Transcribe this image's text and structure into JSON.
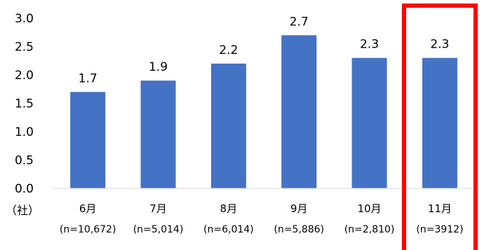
{
  "chart_data": {
    "type": "bar",
    "categories": [
      "6月",
      "7月",
      "8月",
      "9月",
      "10月",
      "11月"
    ],
    "sample_sizes": [
      "(n=10,672)",
      "(n=5,014)",
      "(n=6,014)",
      "(n=5,886)",
      "(n=2,810)",
      "(n=3912)"
    ],
    "values": [
      1.7,
      1.9,
      2.2,
      2.7,
      2.3,
      2.3
    ],
    "value_labels": [
      "1.7",
      "1.9",
      "2.2",
      "2.7",
      "2.3",
      "2.3"
    ],
    "yticks": [
      "0.0",
      "0.5",
      "1.0",
      "1.5",
      "2.0",
      "2.5",
      "3.0"
    ],
    "unit_label": "（社）",
    "ylim": [
      0,
      3.0
    ],
    "grid": false,
    "bar_color": "#4472C4",
    "highlight": {
      "category": "11月",
      "color": "#FF0000"
    }
  }
}
